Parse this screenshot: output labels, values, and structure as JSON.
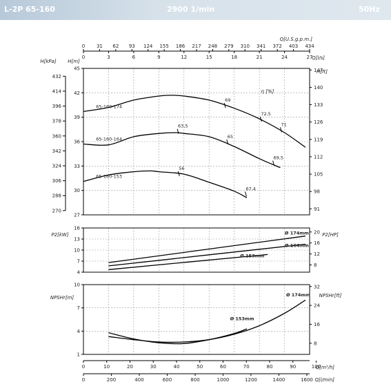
{
  "header": {
    "model": "L-2P 65-160",
    "speed": "2900 1/min",
    "frequency": "50Hz"
  },
  "chart_data": [
    {
      "type": "line",
      "id": "head",
      "x_unit": "Q[l/s]",
      "xlim": [
        0,
        27
      ],
      "x_ticks": [
        0,
        3,
        6,
        9,
        12,
        15,
        18,
        21,
        24,
        27
      ],
      "top_axis": {
        "label": "Q[U.S.g.p.m.]",
        "ticks": [
          "0",
          "31",
          "62",
          "93",
          "124",
          "155",
          "186",
          "217",
          "248",
          "279",
          "310",
          "341",
          "372",
          "403",
          "434"
        ]
      },
      "ylabel": "H[m]",
      "ylim": [
        27,
        45
      ],
      "y_ticks": [
        27,
        30,
        33,
        36,
        39,
        42,
        45
      ],
      "left_outer_axis": {
        "label": "H[kPa]",
        "ticks": [
          "270",
          "288",
          "306",
          "324",
          "342",
          "360",
          "378",
          "396",
          "414",
          "432"
        ]
      },
      "right_axis": {
        "label": "H[ft]",
        "ticks": [
          "91",
          "98",
          "105",
          "112",
          "119",
          "126",
          "133",
          "140",
          "147"
        ]
      },
      "efficiency_label": "η [%]",
      "series": [
        {
          "name": "65-160-174",
          "x": [
            0,
            3,
            6,
            9,
            10.5,
            12,
            15,
            18,
            21,
            24,
            26.5
          ],
          "y": [
            39.7,
            40.2,
            41.1,
            41.6,
            41.7,
            41.6,
            41.1,
            40.1,
            38.8,
            37.1,
            35.3
          ],
          "eff_marks": [
            {
              "label": "69",
              "x": 16.8,
              "y": 40.5
            },
            {
              "label": "72,5",
              "x": 21.1,
              "y": 38.8
            },
            {
              "label": "71",
              "x": 23.5,
              "y": 37.5
            }
          ]
        },
        {
          "name": "65-160-164",
          "x": [
            0,
            3,
            6,
            9,
            11,
            12,
            15,
            18,
            21,
            23.5
          ],
          "y": [
            35.7,
            35.6,
            36.6,
            37.0,
            37.1,
            37.0,
            36.6,
            35.4,
            33.9,
            32.8
          ],
          "eff_marks": [
            {
              "label": "63,5",
              "x": 11.2,
              "y": 37.3
            },
            {
              "label": "65",
              "x": 17.1,
              "y": 36.0
            },
            {
              "label": "69,5",
              "x": 22.6,
              "y": 33.4
            }
          ]
        },
        {
          "name": "65-160-153",
          "x": [
            0,
            3,
            6,
            8,
            9,
            12,
            15,
            18,
            19.5
          ],
          "y": [
            31.1,
            31.9,
            32.3,
            32.4,
            32.3,
            32.0,
            31.0,
            29.9,
            29.1
          ],
          "eff_marks": [
            {
              "label": "56",
              "x": 11.3,
              "y": 32.1
            },
            {
              "label": "67,4",
              "x": 19.3,
              "y": 29.6
            }
          ]
        }
      ]
    },
    {
      "type": "line",
      "id": "power",
      "ylabel": "P2[kW]",
      "ylim": [
        4,
        16
      ],
      "y_ticks": [
        4,
        7,
        10,
        13,
        16
      ],
      "right_axis": {
        "label": "P2[HP]",
        "ticks": [
          "8",
          "12",
          "16",
          "20"
        ]
      },
      "xlim": [
        0,
        27
      ],
      "series": [
        {
          "name": "Ø 174mm",
          "x": [
            3,
            26.5
          ],
          "y": [
            6.6,
            13.8
          ]
        },
        {
          "name": "Ø 164mm",
          "x": [
            3,
            26.5
          ],
          "y": [
            5.7,
            11.6
          ]
        },
        {
          "name": "Ø 153mm",
          "x": [
            3,
            22
          ],
          "y": [
            4.7,
            8.8
          ]
        }
      ]
    },
    {
      "type": "line",
      "id": "npsh",
      "ylabel": "NPSHr[m]",
      "ylim": [
        1,
        10
      ],
      "y_ticks": [
        1,
        4,
        7,
        10
      ],
      "right_axis": {
        "label": "NPSHr[ft]",
        "ticks": [
          "8",
          "16",
          "24",
          "32"
        ]
      },
      "xlim": [
        0,
        27
      ],
      "series": [
        {
          "name": "Ø 174mm",
          "x": [
            3,
            6,
            9,
            12,
            15,
            18,
            21,
            24,
            26.5
          ],
          "y": [
            3.3,
            2.9,
            2.6,
            2.6,
            2.9,
            3.6,
            4.7,
            6.3,
            8.0
          ]
        },
        {
          "name": "Ø 153mm",
          "x": [
            3,
            6,
            9,
            12,
            15,
            18,
            19.5
          ],
          "y": [
            3.8,
            3.0,
            2.5,
            2.4,
            2.9,
            3.7,
            4.3
          ]
        }
      ],
      "bottom_axes": [
        {
          "label": "Q[m³/h]",
          "ticks": [
            "0",
            "10",
            "20",
            "30",
            "40",
            "50",
            "60",
            "70",
            "80",
            "90",
            "100"
          ]
        },
        {
          "label": "Q[l/min]",
          "ticks": [
            "0",
            "200",
            "400",
            "600",
            "800",
            "1000",
            "1200",
            "1400",
            "1600"
          ]
        }
      ]
    }
  ]
}
